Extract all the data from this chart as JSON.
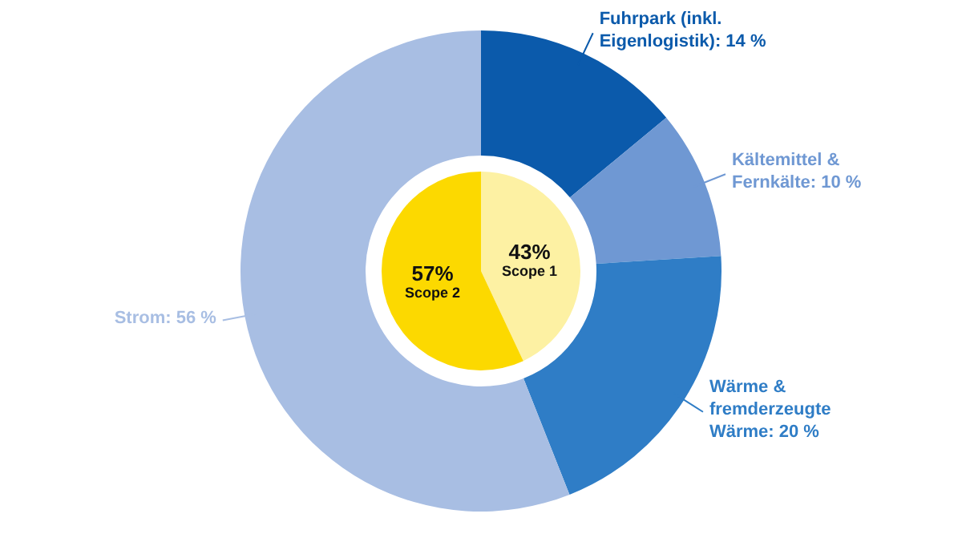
{
  "chart_data": [
    {
      "type": "donut",
      "categories": [
        "Fuhrpark (inkl. Eigenlogistik)",
        "Kältemittel & Fernkälte",
        "Wärme & fremderzeugte Wärme",
        "Strom"
      ],
      "values": [
        14,
        10,
        20,
        56
      ],
      "colors": [
        "#0b5aab",
        "#6f98d3",
        "#2f7dc6",
        "#a8bee3"
      ],
      "value_labels": [
        ": 14 %",
        ": 10 %",
        ": 20 %",
        ": 56 %"
      ]
    },
    {
      "type": "pie",
      "categories": [
        "Scope 1",
        "Scope 2"
      ],
      "values": [
        43,
        57
      ],
      "colors": [
        "#fdf1a3",
        "#fcd900"
      ],
      "value_labels": [
        "43%",
        "57%"
      ]
    }
  ]
}
